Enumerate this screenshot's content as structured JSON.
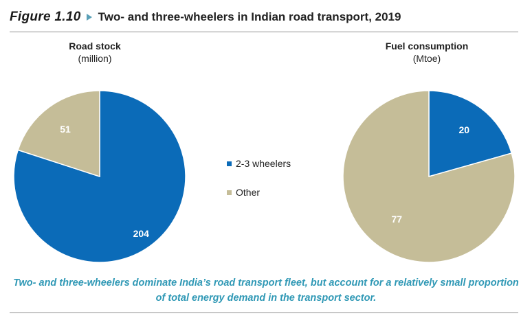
{
  "figure": {
    "number": "Figure 1.10",
    "title": "Two- and three-wheelers in Indian road transport, 2019",
    "caption": "Two- and three-wheelers dominate India’s road transport fleet, but account for a relatively small proportion of total energy demand in the transport sector."
  },
  "colors": {
    "two_three_wheelers": "#0b6bb8",
    "other": "#c5bd98",
    "caption": "#2f98b5"
  },
  "legend": [
    {
      "label": "2-3 wheelers",
      "color": "#0b6bb8"
    },
    {
      "label": "Other",
      "color": "#c5bd98"
    }
  ],
  "chart_data": [
    {
      "type": "pie",
      "title": "Road stock",
      "unit": "(million)",
      "slices": [
        {
          "name": "2-3 wheelers",
          "value": 204,
          "label": "204",
          "color": "#0b6bb8"
        },
        {
          "name": "Other",
          "value": 51,
          "label": "51",
          "color": "#c5bd98"
        }
      ]
    },
    {
      "type": "pie",
      "title": "Fuel consumption",
      "unit": "(Mtoe)",
      "slices": [
        {
          "name": "2-3 wheelers",
          "value": 20,
          "label": "20",
          "color": "#0b6bb8"
        },
        {
          "name": "Other",
          "value": 77,
          "label": "77",
          "color": "#c5bd98"
        }
      ]
    }
  ]
}
